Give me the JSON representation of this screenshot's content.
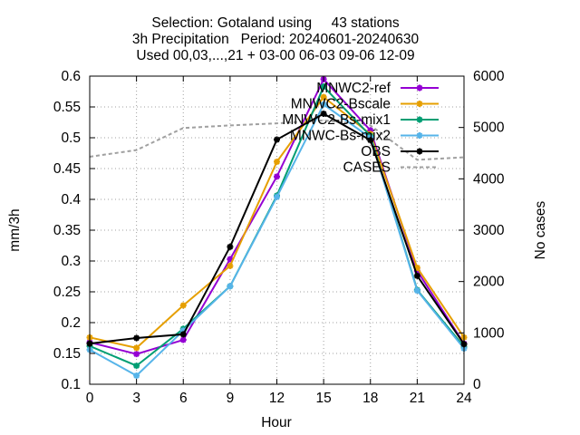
{
  "chart_data": {
    "type": "line",
    "title_lines": [
      "Selection: Gotaland using     43 stations",
      "3h Precipitation   Period: 20240601-20240630",
      "Used 00,03,...,21 + 03-00 06-03 09-06 12-09"
    ],
    "xlabel": "Hour",
    "ylabel": "mm/3h",
    "y2label": "No cases",
    "xlim": [
      0,
      24
    ],
    "ylim": [
      0.1,
      0.6
    ],
    "y2lim": [
      0,
      6000
    ],
    "x_ticks": [
      0,
      3,
      6,
      9,
      12,
      15,
      18,
      21,
      24
    ],
    "y_ticks": [
      "0.1",
      "0.15",
      "0.2",
      "0.25",
      "0.3",
      "0.35",
      "0.4",
      "0.45",
      "0.5",
      "0.55",
      "0.6"
    ],
    "y2_ticks": [
      "0",
      "1000",
      "2000",
      "3000",
      "4000",
      "5000",
      "6000"
    ],
    "grid": true,
    "legend_position": "top-right",
    "x": [
      0,
      3,
      6,
      9,
      12,
      15,
      18,
      21,
      24
    ],
    "series": [
      {
        "name": "MNWC2-ref",
        "color": "#9400d3",
        "axis": "y",
        "values": [
          0.168,
          0.149,
          0.172,
          0.303,
          0.437,
          0.595,
          0.512,
          0.284,
          0.166
        ]
      },
      {
        "name": "MNWC2-Bscale",
        "color": "#e69f00",
        "axis": "y",
        "values": [
          0.176,
          0.159,
          0.228,
          0.292,
          0.461,
          0.566,
          0.506,
          0.289,
          0.176
        ]
      },
      {
        "name": "MNWC2-Bs-mix1",
        "color": "#009e73",
        "axis": "y",
        "values": [
          0.162,
          0.13,
          0.19,
          0.259,
          0.406,
          0.583,
          0.503,
          0.253,
          0.161
        ]
      },
      {
        "name": "MNWC-Bs-mix2",
        "color": "#56b4e9",
        "axis": "y",
        "values": [
          0.156,
          0.114,
          0.187,
          0.259,
          0.404,
          0.554,
          0.5,
          0.252,
          0.158
        ]
      },
      {
        "name": "OBS",
        "color": "#000000",
        "axis": "y",
        "values": [
          0.166,
          0.175,
          0.181,
          0.323,
          0.497,
          0.539,
          0.496,
          0.276,
          0.165
        ]
      },
      {
        "name": "CASES",
        "color": "#a0a0a0",
        "axis": "y2",
        "dashed": true,
        "x": [
          0,
          3,
          6,
          9,
          12,
          15,
          18,
          21,
          24
        ],
        "values": [
          4430,
          4560,
          4990,
          5040,
          5080,
          5140,
          5040,
          4370,
          4420
        ]
      }
    ]
  }
}
